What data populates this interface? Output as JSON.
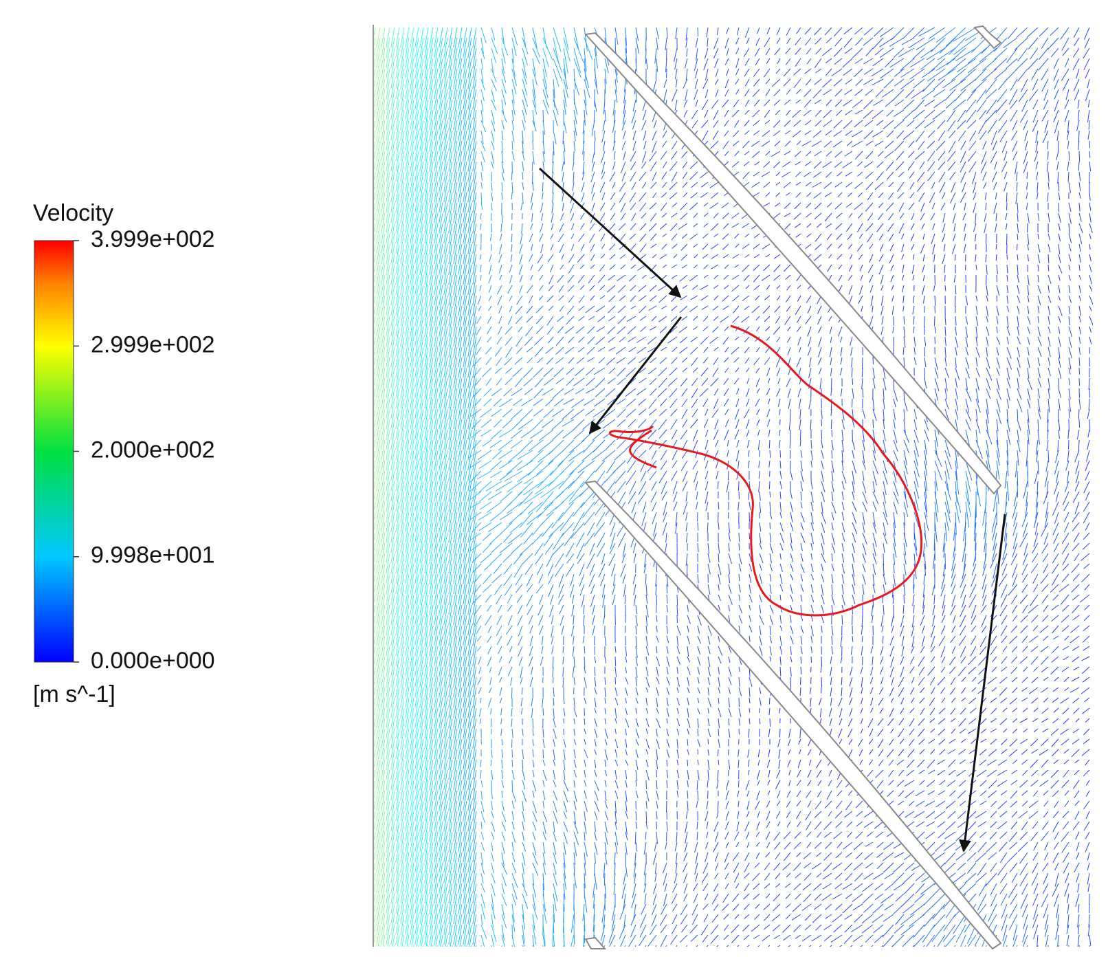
{
  "legend": {
    "title": "Velocity",
    "unit": "[m s^-1]",
    "range": [
      0,
      399.9
    ],
    "ticks": [
      {
        "value": 399.9,
        "label": "3.999e+002"
      },
      {
        "value": 299.9,
        "label": "2.999e+002"
      },
      {
        "value": 200.0,
        "label": "2.000e+002"
      },
      {
        "value": 99.98,
        "label": "9.998e+001"
      },
      {
        "value": 0,
        "label": "0.000e+000"
      }
    ]
  }
}
